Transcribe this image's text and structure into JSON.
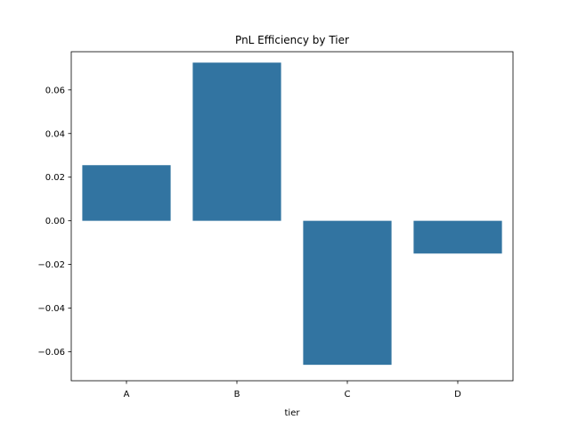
{
  "chart_data": {
    "type": "bar",
    "title": "PnL Efficiency by Tier",
    "xlabel": "tier",
    "ylabel": "",
    "categories": [
      "A",
      "B",
      "C",
      "D"
    ],
    "values": [
      0.0255,
      0.0725,
      -0.066,
      -0.015
    ],
    "ylim": [
      -0.0733,
      0.0775
    ],
    "yticks": [
      -0.06,
      -0.04,
      -0.02,
      0.0,
      0.02,
      0.04,
      0.06
    ],
    "ytick_labels": [
      "−0.06",
      "−0.04",
      "−0.02",
      "0.00",
      "0.02",
      "0.04",
      "0.06"
    ],
    "grid": false,
    "bar_color": "#3274a1"
  }
}
